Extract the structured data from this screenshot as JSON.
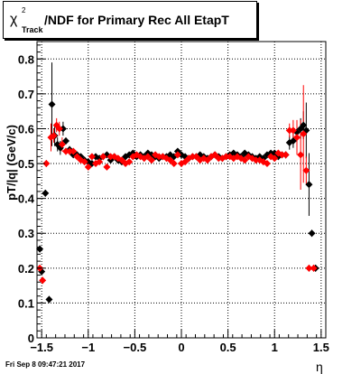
{
  "title": {
    "chi": "χ",
    "sup": "2",
    "sub": "Track",
    "rest": "/NDF for Primary Rec All EtapT"
  },
  "ylabel": "pT/|q| (GeV/c)",
  "xlabel": "η",
  "footer": "Fri Sep  8 09:47:21 2017",
  "colors": {
    "series_black": "#000000",
    "series_red": "#ff0000",
    "grid": "#000000"
  },
  "chart_data": {
    "type": "scatter",
    "xlim": [
      -1.55,
      1.55
    ],
    "ylim": [
      0,
      0.85
    ],
    "x_ticks": [
      -1.5,
      -1,
      -0.5,
      0,
      0.5,
      1,
      1.5
    ],
    "x_tick_labels": [
      "−1.5",
      "−1",
      "−0.5",
      "0",
      "0.5",
      "1",
      "1.5"
    ],
    "y_ticks": [
      0,
      0.1,
      0.2,
      0.3,
      0.4,
      0.5,
      0.6,
      0.7,
      0.8
    ],
    "y_tick_labels": [
      "0",
      "0.1",
      "0.2",
      "0.3",
      "0.4",
      "0.5",
      "0.6",
      "0.7",
      "0.8"
    ],
    "grid": true,
    "series": [
      {
        "color": "black",
        "x": [
          -1.52,
          -1.5,
          -1.46,
          -1.42,
          -1.39,
          -1.36,
          -1.33,
          -1.3,
          -1.27,
          -1.24,
          -1.2,
          -1.16,
          -1.12,
          -1.08,
          -1.04,
          -1.0,
          -0.96,
          -0.92,
          -0.88,
          -0.84,
          -0.8,
          -0.76,
          -0.72,
          -0.68,
          -0.64,
          -0.6,
          -0.56,
          -0.52,
          -0.48,
          -0.44,
          -0.4,
          -0.36,
          -0.32,
          -0.28,
          -0.24,
          -0.2,
          -0.16,
          -0.12,
          -0.08,
          -0.04,
          0.0,
          0.04,
          0.08,
          0.12,
          0.16,
          0.2,
          0.24,
          0.28,
          0.32,
          0.36,
          0.4,
          0.44,
          0.48,
          0.52,
          0.56,
          0.6,
          0.64,
          0.68,
          0.72,
          0.76,
          0.8,
          0.84,
          0.88,
          0.92,
          0.96,
          1.0,
          1.04,
          1.08,
          1.12,
          1.16,
          1.2,
          1.24,
          1.28,
          1.31,
          1.34,
          1.37,
          1.4,
          1.44
        ],
        "y": [
          0.255,
          0.19,
          0.415,
          0.11,
          0.67,
          0.58,
          0.555,
          0.545,
          0.6,
          0.565,
          0.54,
          0.525,
          0.525,
          0.52,
          0.51,
          0.505,
          0.5,
          0.52,
          0.515,
          0.52,
          0.525,
          0.51,
          0.52,
          0.51,
          0.505,
          0.52,
          0.525,
          0.53,
          0.52,
          0.525,
          0.52,
          0.53,
          0.525,
          0.52,
          0.515,
          0.52,
          0.52,
          0.525,
          0.52,
          0.535,
          0.525,
          0.52,
          0.515,
          0.52,
          0.52,
          0.525,
          0.52,
          0.515,
          0.52,
          0.525,
          0.52,
          0.515,
          0.52,
          0.525,
          0.53,
          0.525,
          0.52,
          0.53,
          0.525,
          0.52,
          0.515,
          0.52,
          0.515,
          0.525,
          0.53,
          0.53,
          0.52,
          0.525,
          0.525,
          0.56,
          0.565,
          0.59,
          0.6,
          0.61,
          0.595,
          0.44,
          0.3,
          0.2
        ],
        "yerr": [
          0.01,
          0.01,
          0.01,
          0.01,
          0.12,
          0.03,
          0.02,
          0.02,
          0.02,
          0.01,
          0.01,
          0.005,
          0.005,
          0.005,
          0.005,
          0.005,
          0.005,
          0.005,
          0.005,
          0.005,
          0.005,
          0.005,
          0.005,
          0.005,
          0.005,
          0.005,
          0.005,
          0.005,
          0.005,
          0.005,
          0.005,
          0.005,
          0.005,
          0.005,
          0.005,
          0.005,
          0.005,
          0.005,
          0.005,
          0.005,
          0.005,
          0.005,
          0.005,
          0.005,
          0.005,
          0.005,
          0.005,
          0.005,
          0.005,
          0.005,
          0.005,
          0.005,
          0.005,
          0.005,
          0.005,
          0.005,
          0.005,
          0.005,
          0.005,
          0.005,
          0.005,
          0.005,
          0.005,
          0.005,
          0.005,
          0.005,
          0.005,
          0.005,
          0.01,
          0.02,
          0.02,
          0.03,
          0.03,
          0.04,
          0.08,
          0.09,
          0.01,
          0.01
        ]
      },
      {
        "color": "red",
        "x": [
          -1.52,
          -1.49,
          -1.45,
          -1.4,
          -1.37,
          -1.34,
          -1.31,
          -1.28,
          -1.24,
          -1.2,
          -1.16,
          -1.12,
          -1.08,
          -1.04,
          -1.0,
          -0.96,
          -0.92,
          -0.88,
          -0.84,
          -0.8,
          -0.76,
          -0.72,
          -0.68,
          -0.64,
          -0.6,
          -0.56,
          -0.52,
          -0.48,
          -0.44,
          -0.4,
          -0.36,
          -0.32,
          -0.28,
          -0.24,
          -0.2,
          -0.16,
          -0.12,
          -0.08,
          -0.04,
          0.0,
          0.04,
          0.08,
          0.12,
          0.16,
          0.2,
          0.24,
          0.28,
          0.32,
          0.36,
          0.4,
          0.44,
          0.48,
          0.52,
          0.56,
          0.6,
          0.64,
          0.68,
          0.72,
          0.76,
          0.8,
          0.84,
          0.88,
          0.92,
          0.96,
          1.0,
          1.04,
          1.08,
          1.12,
          1.16,
          1.2,
          1.24,
          1.28,
          1.31,
          1.34,
          1.37,
          1.42
        ],
        "y": [
          0.2,
          0.165,
          0.5,
          0.575,
          0.58,
          0.61,
          0.6,
          0.555,
          0.535,
          0.535,
          0.535,
          0.52,
          0.51,
          0.505,
          0.49,
          0.52,
          0.5,
          0.505,
          0.52,
          0.49,
          0.52,
          0.52,
          0.515,
          0.51,
          0.5,
          0.505,
          0.52,
          0.525,
          0.52,
          0.515,
          0.52,
          0.51,
          0.525,
          0.52,
          0.52,
          0.515,
          0.51,
          0.5,
          0.525,
          0.5,
          0.505,
          0.515,
          0.52,
          0.52,
          0.51,
          0.515,
          0.51,
          0.52,
          0.525,
          0.515,
          0.515,
          0.52,
          0.52,
          0.515,
          0.52,
          0.515,
          0.51,
          0.52,
          0.515,
          0.51,
          0.51,
          0.505,
          0.5,
          0.52,
          0.515,
          0.53,
          0.525,
          0.525,
          0.595,
          0.595,
          0.575,
          0.525,
          0.585,
          0.48,
          0.2,
          0.2
        ],
        "yerr": [
          0.01,
          0.01,
          0.01,
          0.04,
          0.02,
          0.02,
          0.02,
          0.02,
          0.01,
          0.01,
          0.005,
          0.005,
          0.005,
          0.005,
          0.005,
          0.005,
          0.005,
          0.005,
          0.005,
          0.005,
          0.005,
          0.005,
          0.005,
          0.005,
          0.005,
          0.005,
          0.005,
          0.005,
          0.005,
          0.005,
          0.005,
          0.005,
          0.005,
          0.005,
          0.005,
          0.005,
          0.005,
          0.005,
          0.005,
          0.005,
          0.005,
          0.005,
          0.005,
          0.005,
          0.005,
          0.005,
          0.005,
          0.005,
          0.005,
          0.005,
          0.005,
          0.005,
          0.005,
          0.005,
          0.005,
          0.005,
          0.005,
          0.005,
          0.005,
          0.005,
          0.005,
          0.005,
          0.005,
          0.005,
          0.005,
          0.005,
          0.005,
          0.01,
          0.02,
          0.03,
          0.05,
          0.1,
          0.14,
          0.04,
          0.01,
          0.01
        ]
      }
    ]
  }
}
